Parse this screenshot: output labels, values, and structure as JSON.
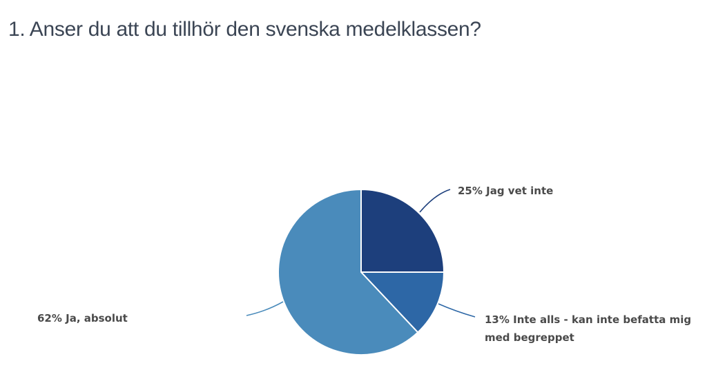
{
  "title": "1. Anser du att du tillhör den svenska medelklassen?",
  "chart_data": {
    "type": "pie",
    "title": "1. Anser du att du tillhör den svenska medelklassen?",
    "categories": [
      "Jag vet inte",
      "Inte alls - kan inte befatta mig med begreppet",
      "Ja, absolut"
    ],
    "values": [
      25,
      13,
      62
    ],
    "unit": "%",
    "colors": [
      "#1d3f7c",
      "#2d67a6",
      "#4a8bbb"
    ],
    "start_angle": "12 o'clock, clockwise",
    "legend": "none (leader-line data labels)"
  },
  "labels": {
    "jag_vet_inte": "25% Jag vet inte",
    "inte_alls_line1": "13% Inte alls - kan inte befatta mig",
    "inte_alls_line2": "med begreppet",
    "ja_absolut": "62% Ja, absolut"
  }
}
